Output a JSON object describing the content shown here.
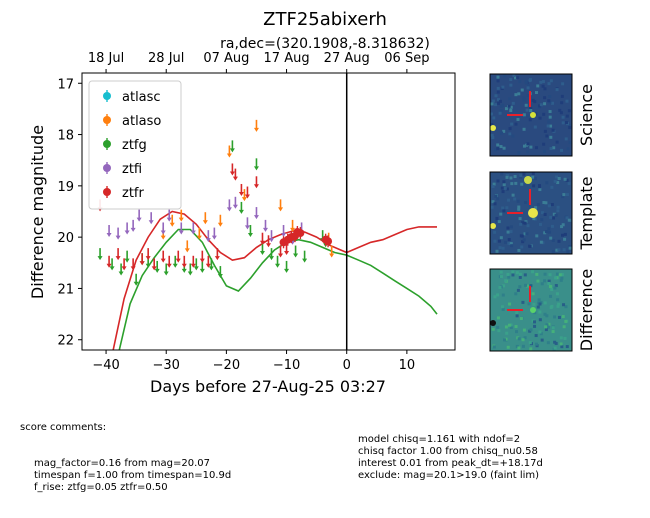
{
  "chart_data": {
    "type": "scatter",
    "title": "ZTF25abixerh",
    "subtitle": "ra,dec=(320.1908,-8.318632)",
    "xlabel": "Days before 27-Aug-25 03:27",
    "ylabel": "Difference magnitude",
    "xlim": [
      -44,
      18
    ],
    "ylim": [
      22.2,
      16.8
    ],
    "x_ticks": [
      -40,
      -30,
      -20,
      -10,
      0,
      10
    ],
    "y_ticks": [
      17,
      18,
      19,
      20,
      21,
      22
    ],
    "top_axis": {
      "ticks": [
        {
          "x": -40,
          "label": "18 Jul"
        },
        {
          "x": -30,
          "label": "28 Jul"
        },
        {
          "x": -20,
          "label": "07 Aug"
        },
        {
          "x": -10,
          "label": "17 Aug"
        },
        {
          "x": 0,
          "label": "27 Aug"
        },
        {
          "x": 10,
          "label": "06 Sep"
        }
      ]
    },
    "reference_line_x": 0,
    "legend_position": "top-left",
    "series": [
      {
        "name": "atlasc",
        "color": "#17becf",
        "kind": "points",
        "points": []
      },
      {
        "name": "atlaso",
        "color": "#ff7f0e",
        "kind": "upper_limits",
        "points": [
          [
            -30.5,
            19.95
          ],
          [
            -29,
            19.7
          ],
          [
            -27.5,
            19.6
          ],
          [
            -26.5,
            20.2
          ],
          [
            -24.5,
            19.95
          ],
          [
            -23.5,
            19.65
          ],
          [
            -21,
            19.7
          ],
          [
            -19.5,
            18.35
          ],
          [
            -17,
            19.2
          ],
          [
            -15,
            17.85
          ],
          [
            -11,
            19.4
          ],
          [
            -9,
            19.8
          ],
          [
            -3,
            20.05
          ],
          [
            -2.5,
            20.3
          ]
        ]
      },
      {
        "name": "ztfg",
        "color": "#2ca02c",
        "kind": "upper_limits",
        "points": [
          [
            -41,
            20.35
          ],
          [
            -39,
            20.55
          ],
          [
            -37.5,
            20.65
          ],
          [
            -36.5,
            20.4
          ],
          [
            -35,
            20.85
          ],
          [
            -34,
            20.45
          ],
          [
            -33,
            20.5
          ],
          [
            -31.5,
            20.6
          ],
          [
            -30,
            20.65
          ],
          [
            -28.5,
            20.5
          ],
          [
            -27,
            20.6
          ],
          [
            -26,
            20.65
          ],
          [
            -25,
            20.55
          ],
          [
            -24,
            20.6
          ],
          [
            -22.5,
            20.55
          ],
          [
            -21,
            20.7
          ],
          [
            -19,
            18.25
          ],
          [
            -17.5,
            19.45
          ],
          [
            -16,
            19.9
          ],
          [
            -15,
            18.6
          ],
          [
            -14,
            20.25
          ],
          [
            -12.5,
            20.35
          ],
          [
            -11.5,
            20.5
          ],
          [
            -10,
            20.6
          ],
          [
            -8.5,
            20.3
          ],
          [
            -7,
            20.4
          ],
          [
            -4,
            20.0
          ],
          [
            -3.5,
            20.1
          ]
        ]
      },
      {
        "name": "ztfi",
        "color": "#9467bd",
        "kind": "upper_limits",
        "points": [
          [
            -39.5,
            19.9
          ],
          [
            -38,
            19.95
          ],
          [
            -36.5,
            19.85
          ],
          [
            -35.5,
            19.8
          ],
          [
            -34.5,
            19.6
          ],
          [
            -32.5,
            19.65
          ],
          [
            -30.5,
            19.85
          ],
          [
            -29.5,
            19.6
          ],
          [
            -27.5,
            19.85
          ],
          [
            -25.5,
            19.85
          ],
          [
            -23,
            20.0
          ],
          [
            -22,
            19.95
          ],
          [
            -19.5,
            19.4
          ],
          [
            -18.5,
            19.35
          ],
          [
            -16.5,
            19.75
          ],
          [
            -15,
            19.55
          ],
          [
            -13.5,
            19.8
          ],
          [
            -12.5,
            20.0
          ],
          [
            -10.5,
            19.9
          ],
          [
            -9,
            20.05
          ],
          [
            -7.5,
            19.85
          ]
        ]
      },
      {
        "name": "ztfr",
        "color": "#d62728",
        "kind": "upper_limits",
        "points": [
          [
            -41,
            19.4
          ],
          [
            -39.5,
            20.5
          ],
          [
            -38,
            20.35
          ],
          [
            -37,
            20.55
          ],
          [
            -35.5,
            20.55
          ],
          [
            -34,
            20.45
          ],
          [
            -33,
            20.35
          ],
          [
            -32,
            20.55
          ],
          [
            -30.5,
            20.4
          ],
          [
            -29.5,
            20.5
          ],
          [
            -28,
            20.4
          ],
          [
            -27,
            20.5
          ],
          [
            -25.5,
            20.5
          ],
          [
            -24,
            20.4
          ],
          [
            -23,
            20.5
          ],
          [
            -21.5,
            20.35
          ],
          [
            -19,
            18.7
          ],
          [
            -18.5,
            18.8
          ],
          [
            -17.5,
            19.1
          ],
          [
            -16.5,
            19.15
          ],
          [
            -15,
            18.95
          ],
          [
            -14,
            20.05
          ],
          [
            -13,
            20.1
          ],
          [
            -11,
            20.3
          ],
          [
            -10,
            20.25
          ]
        ]
      },
      {
        "name": "ztfr",
        "color": "#d62728",
        "kind": "detections",
        "in_legend": false,
        "points": [
          [
            -10.5,
            20.1
          ],
          [
            -9.8,
            20.05
          ],
          [
            -9.2,
            20.0
          ],
          [
            -8.6,
            19.98
          ],
          [
            -8.2,
            19.9
          ],
          [
            -7.7,
            19.92
          ],
          [
            -3.5,
            20.05
          ],
          [
            -3.1,
            20.08
          ]
        ]
      },
      {
        "name": "ztfg-model",
        "color": "#2ca02c",
        "kind": "curve",
        "in_legend": false,
        "points": [
          [
            -38,
            22.3
          ],
          [
            -36,
            21.3
          ],
          [
            -34,
            20.75
          ],
          [
            -32,
            20.4
          ],
          [
            -30,
            20.1
          ],
          [
            -28,
            19.85
          ],
          [
            -26,
            19.85
          ],
          [
            -24,
            20.1
          ],
          [
            -22,
            20.55
          ],
          [
            -20,
            20.95
          ],
          [
            -18,
            21.05
          ],
          [
            -16,
            20.8
          ],
          [
            -14,
            20.5
          ],
          [
            -12,
            20.25
          ],
          [
            -10,
            20.1
          ],
          [
            -8,
            20.05
          ],
          [
            -6,
            20.1
          ],
          [
            -4,
            20.2
          ],
          [
            -2,
            20.3
          ],
          [
            0,
            20.35
          ],
          [
            2,
            20.45
          ],
          [
            4,
            20.55
          ],
          [
            6,
            20.7
          ],
          [
            8,
            20.85
          ],
          [
            10,
            21.0
          ],
          [
            12,
            21.15
          ],
          [
            14,
            21.35
          ],
          [
            15,
            21.5
          ]
        ]
      },
      {
        "name": "ztfr-model",
        "color": "#d62728",
        "kind": "curve",
        "in_legend": false,
        "points": [
          [
            -39,
            22.3
          ],
          [
            -37,
            21.2
          ],
          [
            -35,
            20.45
          ],
          [
            -33,
            20.0
          ],
          [
            -31,
            19.65
          ],
          [
            -29,
            19.5
          ],
          [
            -27,
            19.55
          ],
          [
            -25,
            19.75
          ],
          [
            -23,
            20.05
          ],
          [
            -21,
            20.3
          ],
          [
            -19,
            20.45
          ],
          [
            -17,
            20.4
          ],
          [
            -15,
            20.2
          ],
          [
            -13,
            20.05
          ],
          [
            -11,
            19.95
          ],
          [
            -9,
            19.88
          ],
          [
            -7,
            19.9
          ],
          [
            -5,
            20.0
          ],
          [
            -3,
            20.15
          ],
          [
            -1,
            20.25
          ],
          [
            0,
            20.3
          ],
          [
            2,
            20.2
          ],
          [
            4,
            20.1
          ],
          [
            6,
            20.05
          ],
          [
            8,
            19.95
          ],
          [
            10,
            19.85
          ],
          [
            12,
            19.8
          ],
          [
            14,
            19.8
          ],
          [
            15,
            19.8
          ]
        ]
      }
    ]
  },
  "thumbnails": [
    {
      "label": "Science",
      "base": "#2a4a7f",
      "source_color": "#d6e23a"
    },
    {
      "label": "Template",
      "base": "#2b5082",
      "source_color": "#e8e54a"
    },
    {
      "label": "Difference",
      "base": "#3a8f8a",
      "source_color": "#5ad26a"
    }
  ],
  "comments_left": {
    "header": "score comments:",
    "lines": [
      "mag_factor=0.16 from mag=20.07",
      "timespan f=1.00 from timespan=10.9d",
      "f_rise: ztfg=0.05 ztfr=0.50"
    ]
  },
  "comments_right": {
    "lines": [
      "model chisq=1.161 with ndof=2",
      "chisq factor 1.00 from chisq_nu0.58",
      "interest 0.01 from peak_dt=+18.17d",
      "exclude: mag=20.1>19.0 (faint lim)"
    ]
  }
}
